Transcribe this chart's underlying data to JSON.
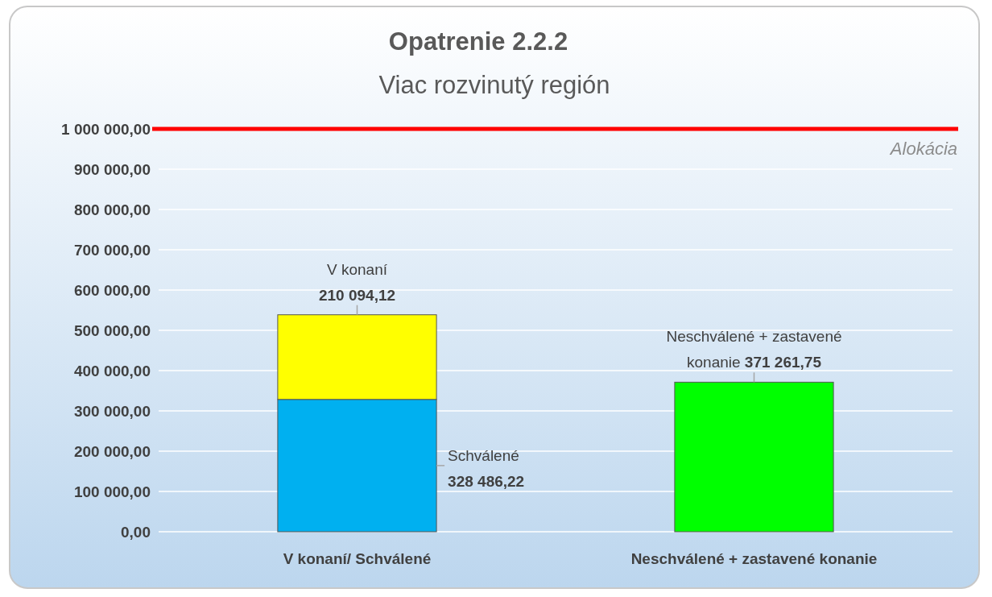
{
  "chart_data": {
    "type": "bar",
    "title": "Opatrenie 2.2.2",
    "subtitle": "Viac rozvinutý región",
    "categories": [
      "V konaní/ Schválené",
      "Neschválené + zastavené konanie"
    ],
    "stacked": true,
    "series": [
      {
        "name": "Schválené",
        "color": "#00b0f0",
        "values": [
          328486.22,
          null
        ],
        "value_labels": [
          "328 486,22",
          null
        ]
      },
      {
        "name": "V konaní",
        "color": "#ffff00",
        "values": [
          210094.12,
          null
        ],
        "value_labels": [
          "210 094,12",
          null
        ]
      },
      {
        "name": "Neschválené + zastavené konanie",
        "color": "#00ff00",
        "values": [
          null,
          371261.75
        ],
        "value_labels": [
          null,
          "371 261,75"
        ]
      }
    ],
    "ylim": [
      0,
      1000000
    ],
    "yticks": [
      {
        "value": 0,
        "label": "0,00"
      },
      {
        "value": 100000,
        "label": "100 000,00"
      },
      {
        "value": 200000,
        "label": "200 000,00"
      },
      {
        "value": 300000,
        "label": "300 000,00"
      },
      {
        "value": 400000,
        "label": "400 000,00"
      },
      {
        "value": 500000,
        "label": "500 000,00"
      },
      {
        "value": 600000,
        "label": "600 000,00"
      },
      {
        "value": 700000,
        "label": "700 000,00"
      },
      {
        "value": 800000,
        "label": "800 000,00"
      },
      {
        "value": 900000,
        "label": "900 000,00"
      },
      {
        "value": 1000000,
        "label": "1 000 000,00"
      }
    ],
    "grid": "y",
    "ref_lines": [
      {
        "axis": "y",
        "value": 1000000,
        "label": "Alokácia",
        "color": "#ff0000"
      }
    ]
  }
}
